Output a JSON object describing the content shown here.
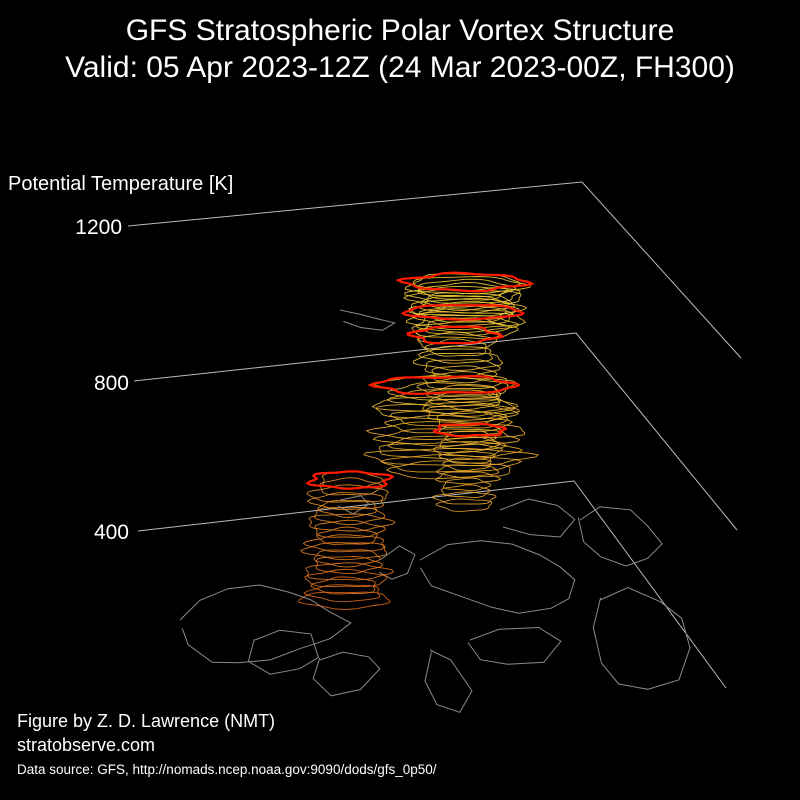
{
  "header": {
    "title_line1": "GFS Stratospheric Polar Vortex Structure",
    "title_line2": "Valid: 05 Apr 2023-12Z  (24 Mar 2023-00Z, FH300)"
  },
  "chart_data": {
    "type": "3d-isosurface",
    "zlabel": "Potential Temperature [K]",
    "zticks": [
      "1200",
      "800",
      "400"
    ],
    "colors": {
      "background": "#000000",
      "axes": "#bbbbbb",
      "coastline": "#8a8a8a",
      "vortex_edge": "#ff1a00",
      "upper_contours": "#f5d23a",
      "lower_contours": "#e06a1a"
    }
  },
  "footer": {
    "credit": "Figure by Z. D. Lawrence (NMT)",
    "website": "stratobserve.com",
    "source": "Data source: GFS, http://nomads.ncep.noaa.gov:9090/dods/gfs_0p50/"
  }
}
